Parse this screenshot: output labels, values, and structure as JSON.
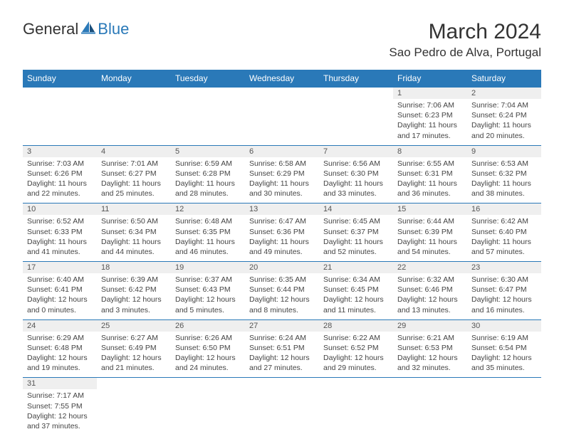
{
  "logo": {
    "text1": "General",
    "text2": "Blue"
  },
  "title": "March 2024",
  "location": "Sao Pedro de Alva, Portugal",
  "colors": {
    "header_bg": "#2a79b8",
    "header_fg": "#ffffff",
    "daynum_bg": "#efefef",
    "border": "#2a79b8",
    "text": "#333333"
  },
  "weekdays": [
    "Sunday",
    "Monday",
    "Tuesday",
    "Wednesday",
    "Thursday",
    "Friday",
    "Saturday"
  ],
  "weeks": [
    [
      null,
      null,
      null,
      null,
      null,
      {
        "n": "1",
        "sr": "7:06 AM",
        "ss": "6:23 PM",
        "dl": "11 hours and 17 minutes."
      },
      {
        "n": "2",
        "sr": "7:04 AM",
        "ss": "6:24 PM",
        "dl": "11 hours and 20 minutes."
      }
    ],
    [
      {
        "n": "3",
        "sr": "7:03 AM",
        "ss": "6:26 PM",
        "dl": "11 hours and 22 minutes."
      },
      {
        "n": "4",
        "sr": "7:01 AM",
        "ss": "6:27 PM",
        "dl": "11 hours and 25 minutes."
      },
      {
        "n": "5",
        "sr": "6:59 AM",
        "ss": "6:28 PM",
        "dl": "11 hours and 28 minutes."
      },
      {
        "n": "6",
        "sr": "6:58 AM",
        "ss": "6:29 PM",
        "dl": "11 hours and 30 minutes."
      },
      {
        "n": "7",
        "sr": "6:56 AM",
        "ss": "6:30 PM",
        "dl": "11 hours and 33 minutes."
      },
      {
        "n": "8",
        "sr": "6:55 AM",
        "ss": "6:31 PM",
        "dl": "11 hours and 36 minutes."
      },
      {
        "n": "9",
        "sr": "6:53 AM",
        "ss": "6:32 PM",
        "dl": "11 hours and 38 minutes."
      }
    ],
    [
      {
        "n": "10",
        "sr": "6:52 AM",
        "ss": "6:33 PM",
        "dl": "11 hours and 41 minutes."
      },
      {
        "n": "11",
        "sr": "6:50 AM",
        "ss": "6:34 PM",
        "dl": "11 hours and 44 minutes."
      },
      {
        "n": "12",
        "sr": "6:48 AM",
        "ss": "6:35 PM",
        "dl": "11 hours and 46 minutes."
      },
      {
        "n": "13",
        "sr": "6:47 AM",
        "ss": "6:36 PM",
        "dl": "11 hours and 49 minutes."
      },
      {
        "n": "14",
        "sr": "6:45 AM",
        "ss": "6:37 PM",
        "dl": "11 hours and 52 minutes."
      },
      {
        "n": "15",
        "sr": "6:44 AM",
        "ss": "6:39 PM",
        "dl": "11 hours and 54 minutes."
      },
      {
        "n": "16",
        "sr": "6:42 AM",
        "ss": "6:40 PM",
        "dl": "11 hours and 57 minutes."
      }
    ],
    [
      {
        "n": "17",
        "sr": "6:40 AM",
        "ss": "6:41 PM",
        "dl": "12 hours and 0 minutes."
      },
      {
        "n": "18",
        "sr": "6:39 AM",
        "ss": "6:42 PM",
        "dl": "12 hours and 3 minutes."
      },
      {
        "n": "19",
        "sr": "6:37 AM",
        "ss": "6:43 PM",
        "dl": "12 hours and 5 minutes."
      },
      {
        "n": "20",
        "sr": "6:35 AM",
        "ss": "6:44 PM",
        "dl": "12 hours and 8 minutes."
      },
      {
        "n": "21",
        "sr": "6:34 AM",
        "ss": "6:45 PM",
        "dl": "12 hours and 11 minutes."
      },
      {
        "n": "22",
        "sr": "6:32 AM",
        "ss": "6:46 PM",
        "dl": "12 hours and 13 minutes."
      },
      {
        "n": "23",
        "sr": "6:30 AM",
        "ss": "6:47 PM",
        "dl": "12 hours and 16 minutes."
      }
    ],
    [
      {
        "n": "24",
        "sr": "6:29 AM",
        "ss": "6:48 PM",
        "dl": "12 hours and 19 minutes."
      },
      {
        "n": "25",
        "sr": "6:27 AM",
        "ss": "6:49 PM",
        "dl": "12 hours and 21 minutes."
      },
      {
        "n": "26",
        "sr": "6:26 AM",
        "ss": "6:50 PM",
        "dl": "12 hours and 24 minutes."
      },
      {
        "n": "27",
        "sr": "6:24 AM",
        "ss": "6:51 PM",
        "dl": "12 hours and 27 minutes."
      },
      {
        "n": "28",
        "sr": "6:22 AM",
        "ss": "6:52 PM",
        "dl": "12 hours and 29 minutes."
      },
      {
        "n": "29",
        "sr": "6:21 AM",
        "ss": "6:53 PM",
        "dl": "12 hours and 32 minutes."
      },
      {
        "n": "30",
        "sr": "6:19 AM",
        "ss": "6:54 PM",
        "dl": "12 hours and 35 minutes."
      }
    ],
    [
      {
        "n": "31",
        "sr": "7:17 AM",
        "ss": "7:55 PM",
        "dl": "12 hours and 37 minutes."
      },
      null,
      null,
      null,
      null,
      null,
      null
    ]
  ],
  "labels": {
    "sunrise": "Sunrise:",
    "sunset": "Sunset:",
    "daylight": "Daylight:"
  }
}
